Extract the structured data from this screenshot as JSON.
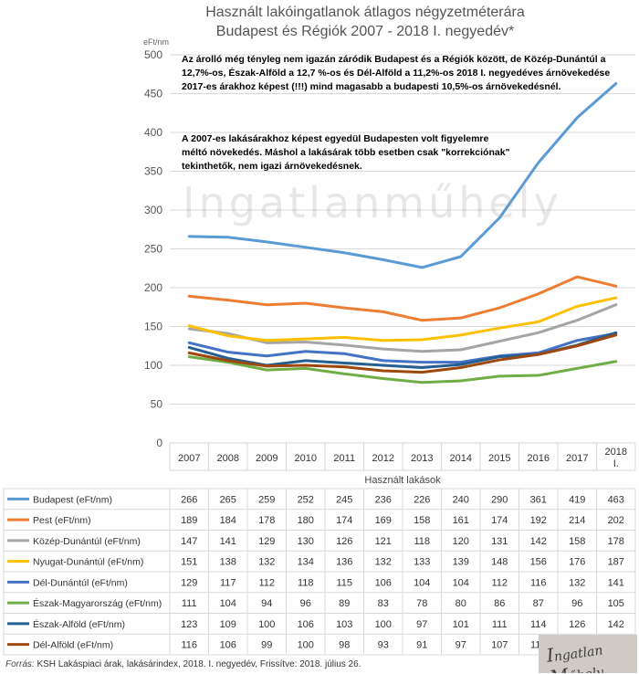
{
  "title_line1": "Használt lakóingatlanok átlagos négyzetméterára",
  "title_line2": "Budapest és Régiók 2007 - 2018 I. negyedév*",
  "unit_label": "eFt/nm",
  "note1": "Az árolló még tényleg nem igazán záródik Budapest és a Régiók között, de Közép-Dunántúl a 12,7%-os, Észak-Alföld a 12,7 %-os és Dél-Alföld a 11,2%-os 2018 I. negyedéves árnövekedése 2017-es árakhoz képest (!!!) mind magasabb a budapesti 10,5%-os árnövekedésnél.",
  "note2": "A 2007-es lakásárakhoz képest egyedül Budapesten volt figyelemre méltó növekedés. Máshol a lakásárak több esetben csak \"korrekciónak\" tekinthetők, nem igazi árnövekedésnek.",
  "watermark": "Ingatlanműhely",
  "source_label": "Forrás:",
  "source_text": "KSH Lakáspiaci árak, lakásárindex, 2018. I. negyedév, Frissítve: 2018. július 26.",
  "logo_text": "Ingatlan Műhely",
  "chart_data": {
    "type": "line",
    "categories": [
      "2007",
      "2008",
      "2009",
      "2010",
      "2011",
      "2012",
      "2013",
      "2014",
      "2015",
      "2016",
      "2017",
      "2018 I."
    ],
    "xlabel": "Használt lakások",
    "ylabel": "eFt/nm",
    "ylim": [
      0,
      500
    ],
    "yticks": [
      0,
      50,
      100,
      150,
      200,
      250,
      300,
      350,
      400,
      450,
      500
    ],
    "grid": true,
    "series": [
      {
        "name": "Budapest (eFt/nm)",
        "color": "#5b9bd5",
        "values": [
          266,
          265,
          259,
          252,
          245,
          236,
          226,
          240,
          290,
          361,
          419,
          463
        ]
      },
      {
        "name": "Pest (eFt/nm)",
        "color": "#ed7d31",
        "values": [
          189,
          184,
          178,
          180,
          174,
          169,
          158,
          161,
          174,
          192,
          214,
          202
        ]
      },
      {
        "name": "Közép-Dunántúl (eFt/nm)",
        "color": "#a5a5a5",
        "values": [
          147,
          141,
          129,
          130,
          126,
          121,
          118,
          120,
          131,
          142,
          158,
          178
        ]
      },
      {
        "name": "Nyugat-Dunántúl (eFt/nm)",
        "color": "#ffc000",
        "values": [
          151,
          138,
          132,
          134,
          136,
          132,
          133,
          139,
          148,
          156,
          176,
          187
        ]
      },
      {
        "name": "Dél-Dunántúl (eFt/nm)",
        "color": "#4472c4",
        "values": [
          129,
          117,
          112,
          118,
          115,
          106,
          104,
          104,
          112,
          116,
          132,
          141
        ]
      },
      {
        "name": "Észak-Magyarország (eFt/nm)",
        "color": "#70ad47",
        "values": [
          111,
          104,
          94,
          96,
          89,
          83,
          78,
          80,
          86,
          87,
          96,
          105
        ]
      },
      {
        "name": "Észak-Alföld (eFt/nm)",
        "color": "#255e91",
        "values": [
          123,
          109,
          100,
          106,
          103,
          100,
          97,
          101,
          111,
          114,
          126,
          142
        ]
      },
      {
        "name": "Dél-Alföld (eFt/nm)",
        "color": "#9e480e",
        "values": [
          116,
          106,
          99,
          100,
          98,
          93,
          91,
          97,
          107,
          114,
          125,
          139
        ]
      }
    ]
  }
}
